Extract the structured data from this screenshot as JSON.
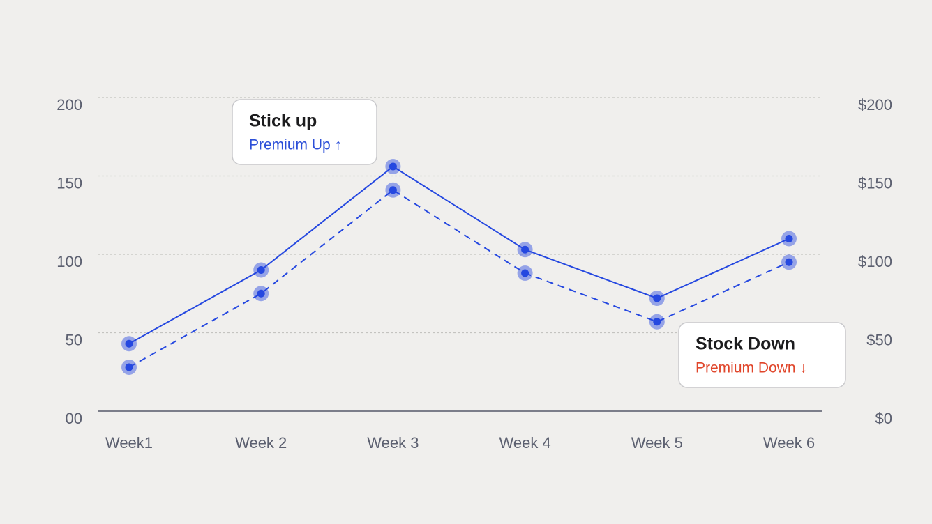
{
  "chart_data": {
    "type": "line",
    "categories": [
      "Week1",
      "Week 2",
      "Week 3",
      "Week 4",
      "Week 5",
      "Week 6"
    ],
    "series": [
      {
        "color": "#2548e0",
        "line_style": "solid",
        "values": [
          43,
          90,
          156,
          103,
          72,
          110
        ]
      },
      {
        "color": "#2548e0",
        "line_style": "dashed",
        "values": [
          28,
          75,
          141,
          88,
          57,
          95
        ]
      }
    ],
    "ylim": [
      0,
      200
    ],
    "yticks": [
      {
        "value": 0,
        "label": "00"
      },
      50,
      100,
      150,
      200
    ],
    "y2lim": [
      0,
      200
    ],
    "y2ticks": [
      {
        "value": 0,
        "label": "$0"
      },
      {
        "value": 50,
        "label": "$50"
      },
      {
        "value": 100,
        "label": "$100"
      },
      {
        "value": 150,
        "label": "$150"
      },
      {
        "value": 200,
        "label": "$200"
      }
    ],
    "grid": true,
    "annotations": [
      {
        "title": "Stick up",
        "text": "Premium Up ↑",
        "color": "#2c4fd8"
      },
      {
        "title": "Stock Down",
        "text": "Premium Down ↓",
        "color": "#e0452a"
      }
    ]
  }
}
